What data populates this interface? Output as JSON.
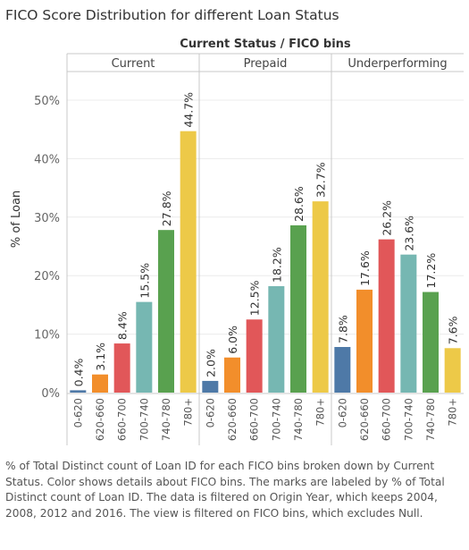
{
  "title": "FICO Score Distribution for different Loan Status",
  "caption": "% of Total Distinct count of Loan ID for each FICO bins broken down by Current Status.  Color shows details about FICO bins.  The marks are labeled by % of Total Distinct count of Loan ID. The data is filtered on Origin Year, which keeps 2004, 2008, 2012 and 2016. The view is filtered on FICO bins, which excludes Null.",
  "colors": {
    "0-620": "#4e79a7",
    "620-660": "#f28e2b",
    "660-700": "#e15759",
    "700-740": "#76b7b2",
    "740-780": "#59a14f",
    "780+": "#edc948"
  },
  "chart_data": {
    "type": "bar",
    "column_header_title": "Current Status  /  FICO bins",
    "ylabel": "% of Loan",
    "ylim": [
      0,
      0.55
    ],
    "yticks": [
      0,
      0.1,
      0.2,
      0.3,
      0.4,
      0.5
    ],
    "ytick_labels": [
      "0%",
      "10%",
      "20%",
      "30%",
      "40%",
      "50%"
    ],
    "categories": [
      "0-620",
      "620-660",
      "660-700",
      "700-740",
      "740-780",
      "780+"
    ],
    "panels": [
      {
        "name": "Current",
        "values": [
          0.004,
          0.031,
          0.084,
          0.155,
          0.278,
          0.447
        ],
        "labels": [
          "0.4%",
          "3.1%",
          "8.4%",
          "15.5%",
          "27.8%",
          "44.7%"
        ]
      },
      {
        "name": "Prepaid",
        "values": [
          0.02,
          0.06,
          0.125,
          0.182,
          0.286,
          0.327
        ],
        "labels": [
          "2.0%",
          "6.0%",
          "12.5%",
          "18.2%",
          "28.6%",
          "32.7%"
        ]
      },
      {
        "name": "Underperforming",
        "values": [
          0.078,
          0.176,
          0.262,
          0.236,
          0.172,
          0.076
        ],
        "labels": [
          "7.8%",
          "17.6%",
          "26.2%",
          "23.6%",
          "17.2%",
          "7.6%"
        ]
      }
    ],
    "grid": true
  }
}
